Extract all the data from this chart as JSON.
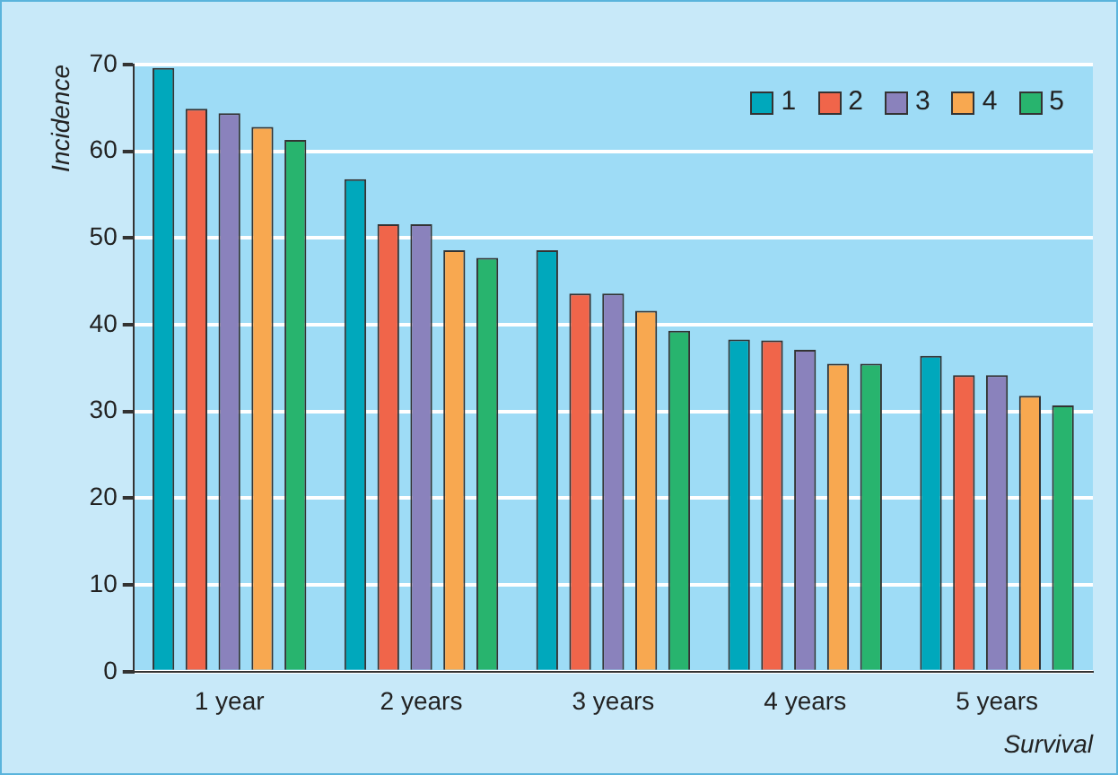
{
  "chart_data": {
    "type": "bar",
    "xlabel": "Survival",
    "ylabel": "Incidence",
    "categories": [
      "1 year",
      "2 years",
      "3 years",
      "4 years",
      "5 years"
    ],
    "series": [
      {
        "name": "1",
        "color": "#00a8bc",
        "values": [
          69.6,
          56.8,
          48.6,
          38.3,
          36.4
        ]
      },
      {
        "name": "2",
        "color": "#f0654a",
        "values": [
          64.9,
          51.6,
          43.6,
          38.2,
          34.2
        ]
      },
      {
        "name": "3",
        "color": "#8a82bc",
        "values": [
          64.4,
          51.6,
          43.6,
          37.1,
          34.2
        ]
      },
      {
        "name": "4",
        "color": "#f8a850",
        "values": [
          62.8,
          48.6,
          41.6,
          35.5,
          31.8
        ]
      },
      {
        "name": "5",
        "color": "#28b46e",
        "values": [
          61.3,
          47.7,
          39.3,
          35.5,
          30.7
        ]
      }
    ],
    "ylim": [
      0,
      70
    ],
    "yticks": [
      0,
      10,
      20,
      30,
      40,
      50,
      60,
      70
    ],
    "grid": "y",
    "legend": "top right"
  }
}
